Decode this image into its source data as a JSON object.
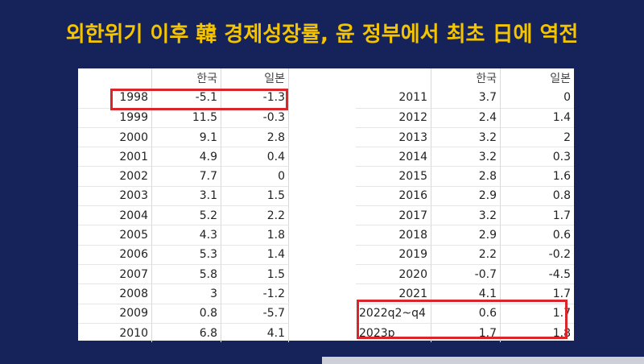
{
  "headline": "외한위기 이후 韓 경제성장률, 윤 정부에서 최초 日에 역전",
  "table_left": {
    "header": [
      "",
      "한국",
      "일본"
    ],
    "rows": [
      [
        "1998",
        "-5.1",
        "-1.3"
      ],
      [
        "1999",
        "11.5",
        "-0.3"
      ],
      [
        "2000",
        "9.1",
        "2.8"
      ],
      [
        "2001",
        "4.9",
        "0.4"
      ],
      [
        "2002",
        "7.7",
        "0"
      ],
      [
        "2003",
        "3.1",
        "1.5"
      ],
      [
        "2004",
        "5.2",
        "2.2"
      ],
      [
        "2005",
        "4.3",
        "1.8"
      ],
      [
        "2006",
        "5.3",
        "1.4"
      ],
      [
        "2007",
        "5.8",
        "1.5"
      ],
      [
        "2008",
        "3",
        "-1.2"
      ],
      [
        "2009",
        "0.8",
        "-5.7"
      ],
      [
        "2010",
        "6.8",
        "4.1"
      ]
    ]
  },
  "table_right": {
    "header": [
      "",
      "한국",
      "일본"
    ],
    "rows": [
      [
        "2011",
        "3.7",
        "0"
      ],
      [
        "2012",
        "2.4",
        "1.4"
      ],
      [
        "2013",
        "3.2",
        "2"
      ],
      [
        "2014",
        "3.2",
        "0.3"
      ],
      [
        "2015",
        "2.8",
        "1.6"
      ],
      [
        "2016",
        "2.9",
        "0.8"
      ],
      [
        "2017",
        "3.2",
        "1.7"
      ],
      [
        "2018",
        "2.9",
        "0.6"
      ],
      [
        "2019",
        "2.2",
        "-0.2"
      ],
      [
        "2020",
        "-0.7",
        "-4.5"
      ],
      [
        "2021",
        "4.1",
        "1.7"
      ],
      [
        "2022q2~q4",
        "0.6",
        "1.7"
      ],
      [
        "2023p",
        "1.7",
        "1.8"
      ]
    ]
  },
  "colors": {
    "background": "#15235a",
    "headline": "#f4c400",
    "highlight_box": "#d8262b"
  }
}
